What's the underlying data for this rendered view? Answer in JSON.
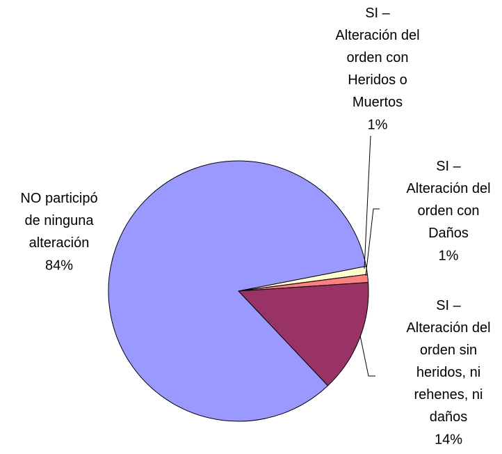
{
  "chart_data": {
    "type": "pie",
    "categories": [
      "SI – Alteración del orden con Heridos o Muertos",
      "SI – Alteración del orden con Daños",
      "SI – Alteración del orden sin heridos, ni rehenes, ni daños",
      "NO participó de ninguna alteración"
    ],
    "values": [
      1,
      1,
      14,
      84
    ],
    "value_labels": [
      "1%",
      "1%",
      "14%",
      "84%"
    ],
    "colors": [
      "#ffffcc",
      "#ff8080",
      "#993366",
      "#9999ff"
    ]
  }
}
